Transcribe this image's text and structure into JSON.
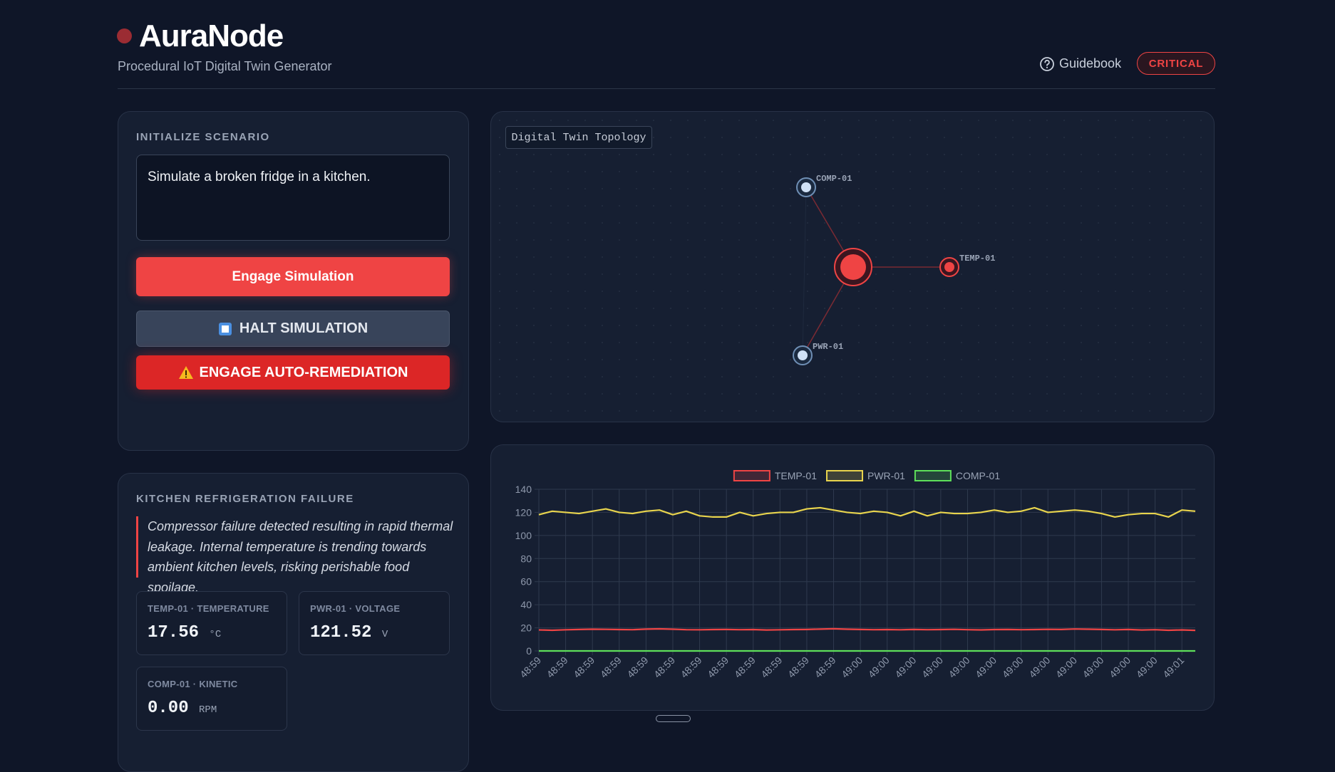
{
  "header": {
    "title": "AuraNode",
    "subtitle": "Procedural IoT Digital Twin Generator",
    "guidebook": "Guidebook",
    "status": "CRITICAL"
  },
  "controls": {
    "heading": "INITIALIZE SCENARIO",
    "prompt": "Simulate a broken fridge in a kitchen.",
    "engage": "Engage Simulation",
    "halt": "HALT SIMULATION",
    "remediate": "ENGAGE AUTO-REMEDIATION"
  },
  "scenario": {
    "title": "KITCHEN REFRIGERATION FAILURE",
    "description": "Compressor failure detected resulting in rapid thermal leakage. Internal temperature is trending towards ambient kitchen levels, risking perishable food spoilage.",
    "metrics": [
      {
        "label": "TEMP-01 · TEMPERATURE",
        "value": "17.56",
        "unit": "°C"
      },
      {
        "label": "PWR-01 · VOLTAGE",
        "value": "121.52",
        "unit": "V"
      },
      {
        "label": "COMP-01 · KINETIC",
        "value": "0.00",
        "unit": "RPM"
      }
    ]
  },
  "topology": {
    "title": "Digital Twin Topology",
    "nodes": [
      {
        "label": "COMP-01"
      },
      {
        "label": "TEMP-01"
      },
      {
        "label": "PWR-01"
      }
    ]
  },
  "chart_data": {
    "type": "line",
    "categories": [
      "48:59",
      null,
      "48:59",
      null,
      "48:59",
      null,
      "48:59",
      null,
      "48:59",
      null,
      "48:59",
      null,
      "48:59",
      null,
      "48:59",
      null,
      "48:59",
      null,
      "48:59",
      null,
      "48:59",
      null,
      "48:59",
      null,
      "49:00",
      null,
      "49:00",
      null,
      "49:00",
      null,
      "49:00",
      null,
      "49:00",
      null,
      "49:00",
      null,
      "49:00",
      null,
      "49:00",
      null,
      "49:00",
      null,
      "49:00",
      null,
      "49:00",
      null,
      "49:00",
      null,
      "49:01",
      null
    ],
    "series": [
      {
        "name": "TEMP-01",
        "color": "#ef4444",
        "values": [
          18.2,
          17.9,
          18.3,
          18.6,
          18.8,
          18.7,
          18.5,
          18.4,
          18.9,
          19.1,
          18.8,
          18.4,
          18.3,
          18.5,
          18.6,
          18.4,
          18.5,
          18.1,
          18.3,
          18.5,
          18.6,
          18.9,
          19.2,
          18.8,
          18.6,
          18.4,
          18.5,
          18.3,
          18.6,
          18.4,
          18.5,
          18.7,
          18.4,
          18.2,
          18.5,
          18.6,
          18.4,
          18.5,
          18.7,
          18.6,
          19.0,
          18.8,
          18.6,
          18.3,
          18.6,
          18.1,
          18.4,
          17.9,
          18.2,
          17.8
        ]
      },
      {
        "name": "PWR-01",
        "color": "#e8d44d",
        "values": [
          118,
          121,
          120,
          119,
          121,
          123,
          120,
          119,
          121,
          122,
          118,
          121,
          117,
          116,
          116,
          120,
          117,
          119,
          120,
          120,
          123,
          124,
          122,
          120,
          119,
          121,
          120,
          117,
          121,
          117,
          120,
          119,
          119,
          120,
          122,
          120,
          121,
          124,
          120,
          121,
          122,
          121,
          119,
          116,
          118,
          119,
          119,
          116,
          122,
          121
        ]
      },
      {
        "name": "COMP-01",
        "color": "#5ee05a",
        "values": [
          0,
          0,
          0,
          0,
          0,
          0,
          0,
          0,
          0,
          0,
          0,
          0,
          0,
          0,
          0,
          0,
          0,
          0,
          0,
          0,
          0,
          0,
          0,
          0,
          0,
          0,
          0,
          0,
          0,
          0,
          0,
          0,
          0,
          0,
          0,
          0,
          0,
          0,
          0,
          0,
          0,
          0,
          0,
          0,
          0,
          0,
          0,
          0,
          0,
          0
        ]
      }
    ],
    "ylim": [
      0,
      140
    ],
    "yticks": [
      0,
      20,
      40,
      60,
      80,
      100,
      120,
      140
    ],
    "grid": true,
    "legend": "top"
  }
}
